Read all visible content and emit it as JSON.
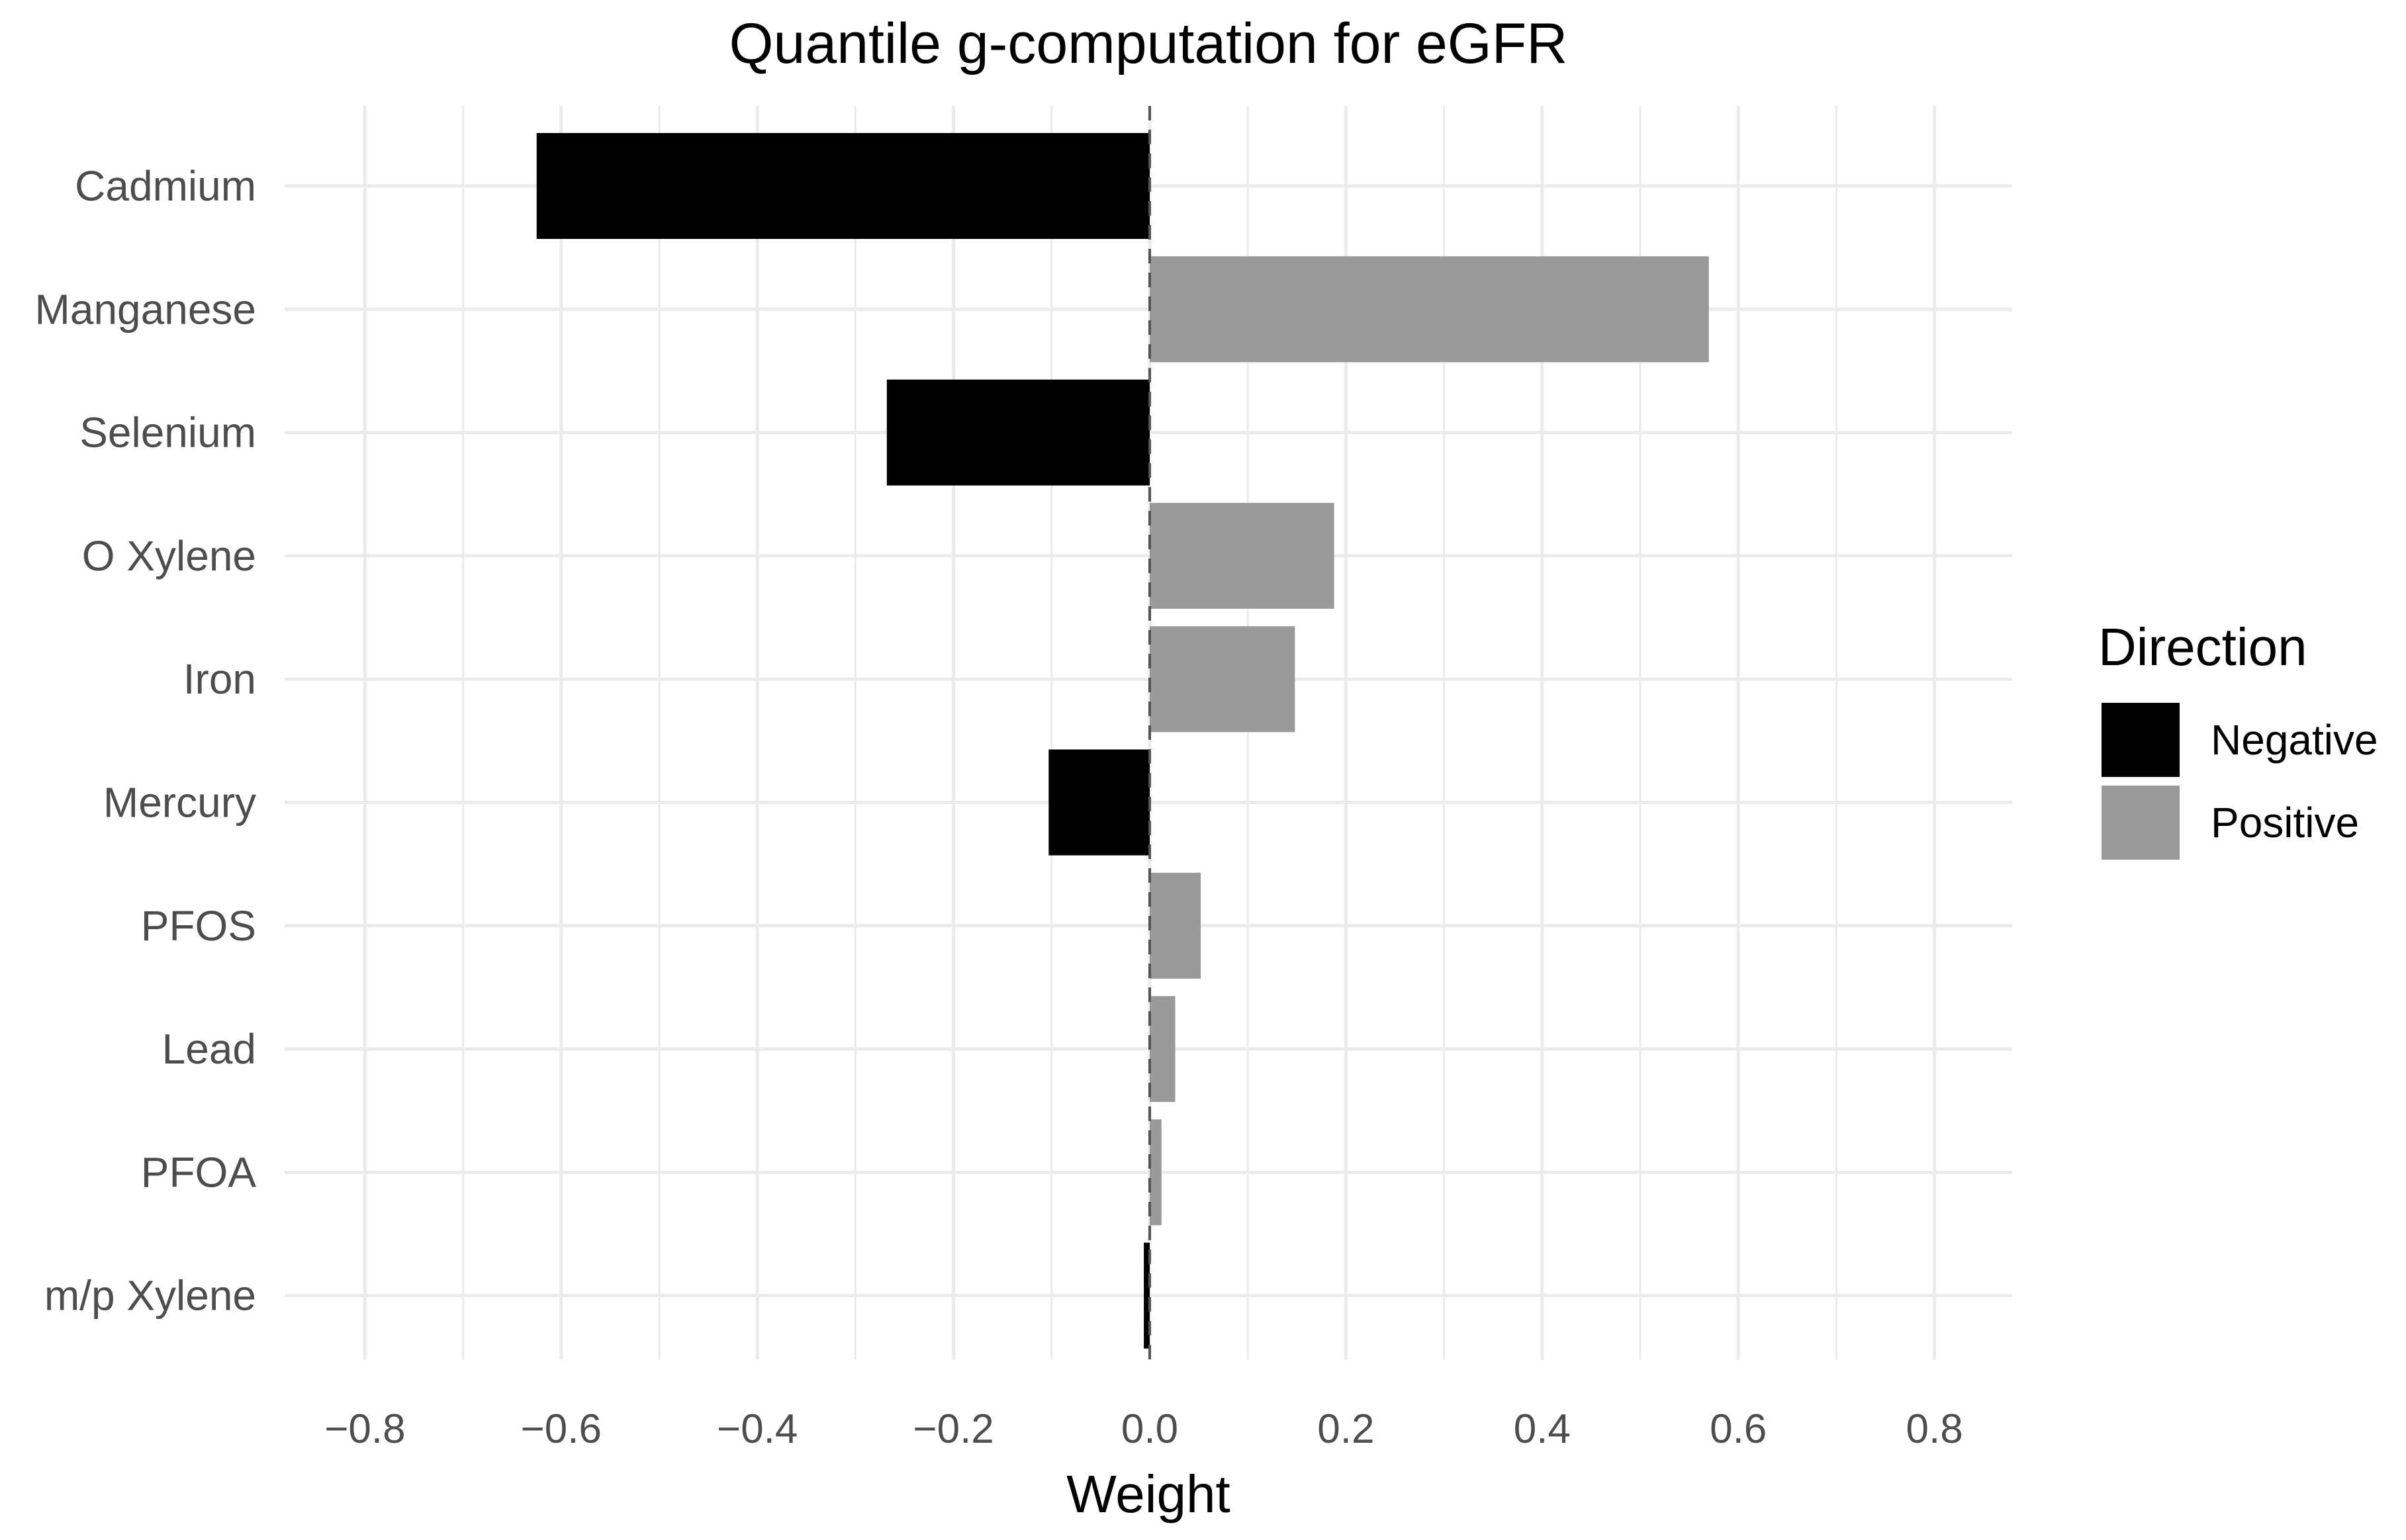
{
  "chart_data": {
    "type": "bar",
    "orientation": "horizontal",
    "title": "Quantile g-computation for eGFR",
    "xlabel": "Weight",
    "ylabel": "",
    "xlim": [
      -0.88,
      0.88
    ],
    "x_ticks": [
      -0.8,
      -0.6,
      -0.4,
      -0.2,
      0.0,
      0.2,
      0.4,
      0.6,
      0.8
    ],
    "x_tick_labels": [
      "−0.8",
      "−0.6",
      "−0.4",
      "−0.2",
      "0.0",
      "0.2",
      "0.4",
      "0.6",
      "0.8"
    ],
    "grid": true,
    "reference_line": {
      "x": 0,
      "style": "dashed"
    },
    "categories": [
      "Cadmium",
      "Manganese",
      "Selenium",
      "O Xylene",
      "Iron",
      "Mercury",
      "PFOS",
      "Lead",
      "PFOA",
      "m/p Xylene"
    ],
    "values": [
      -0.625,
      0.57,
      -0.268,
      0.188,
      0.148,
      -0.103,
      0.052,
      0.026,
      0.012,
      -0.006
    ],
    "directions": [
      "Negative",
      "Positive",
      "Negative",
      "Positive",
      "Positive",
      "Negative",
      "Positive",
      "Positive",
      "Positive",
      "Negative"
    ],
    "legend": {
      "title": "Direction",
      "position": "right",
      "entries": [
        {
          "label": "Negative",
          "color": "#000000"
        },
        {
          "label": "Positive",
          "color": "#999999"
        }
      ]
    }
  }
}
